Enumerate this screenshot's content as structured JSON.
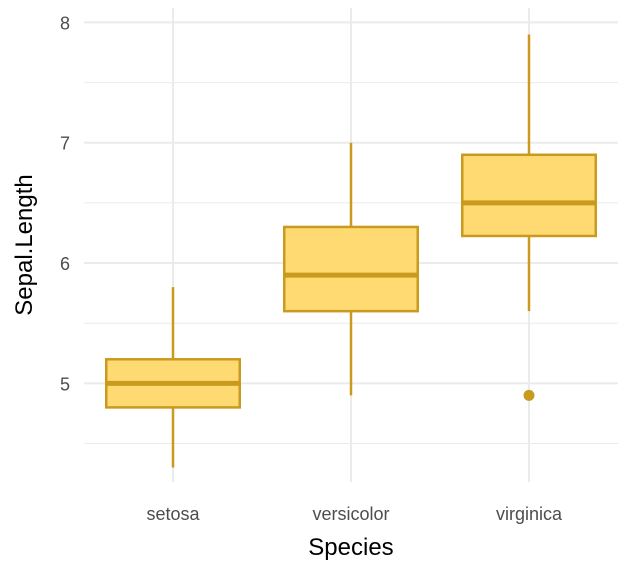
{
  "chart_data": {
    "type": "boxplot",
    "xlabel": "Species",
    "ylabel": "Sepal.Length",
    "categories": [
      "setosa",
      "versicolor",
      "virginica"
    ],
    "boxes": [
      {
        "category": "setosa",
        "whisker_low": 4.3,
        "q1": 4.8,
        "median": 5.0,
        "q3": 5.2,
        "whisker_high": 5.8,
        "outliers": []
      },
      {
        "category": "versicolor",
        "whisker_low": 4.9,
        "q1": 5.6,
        "median": 5.9,
        "q3": 6.3,
        "whisker_high": 7.0,
        "outliers": []
      },
      {
        "category": "virginica",
        "whisker_low": 5.6,
        "q1": 6.225,
        "median": 6.5,
        "q3": 6.9,
        "whisker_high": 7.9,
        "outliers": [
          4.9
        ]
      }
    ],
    "yticks": [
      5,
      6,
      7,
      8
    ],
    "ylim": [
      4.18,
      8.12
    ],
    "grid": true,
    "colors": {
      "fill": "#FFDA72",
      "stroke": "#C99A1E",
      "grid": "#EBEBEB",
      "text": "#4D4D4D"
    }
  }
}
